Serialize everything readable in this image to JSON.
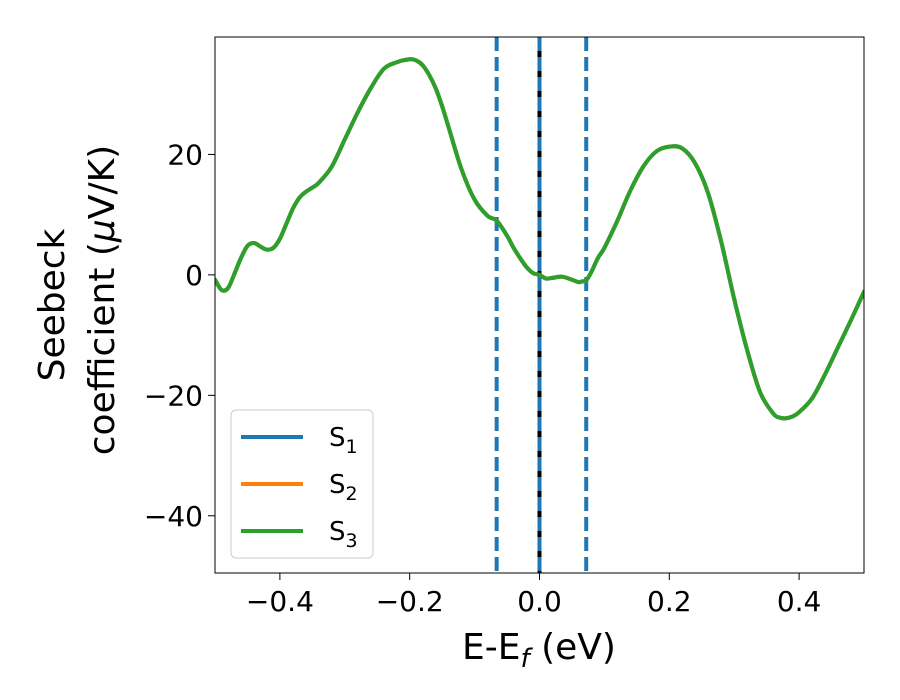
{
  "chart_data": {
    "type": "line",
    "xlabel": "E-E",
    "xlabel_sub": "f",
    "xlabel_unit": " (eV)",
    "ylabel_line1": "Seebeck",
    "ylabel_line2_prefix": "coefficient  (",
    "ylabel_mu": "μ",
    "ylabel_line2_suffix": "V/K)",
    "xlim": [
      -0.5,
      0.5
    ],
    "ylim": [
      -49.5,
      39.5
    ],
    "x_ticks": [
      -0.4,
      -0.2,
      0.0,
      0.2,
      0.4
    ],
    "x_tick_labels": [
      "−0.4",
      "−0.2",
      "0.0",
      "0.2",
      "0.4"
    ],
    "y_ticks": [
      20,
      0,
      -20,
      -40
    ],
    "y_tick_labels": [
      "20",
      "0",
      "−20",
      "−40"
    ],
    "legend_placement": "lower-left",
    "grid": false,
    "vlines": [
      {
        "x": 0.0,
        "color": "#000000",
        "style": "solid"
      },
      {
        "x": -0.066,
        "color": "#1f77b4",
        "style": "dashed"
      },
      {
        "x": 0.0,
        "color": "#1f77b4",
        "style": "dashed"
      },
      {
        "x": 0.072,
        "color": "#1f77b4",
        "style": "dashed"
      }
    ],
    "x": [
      -0.5,
      -0.49,
      -0.48,
      -0.47,
      -0.46,
      -0.45,
      -0.44,
      -0.43,
      -0.42,
      -0.41,
      -0.4,
      -0.39,
      -0.38,
      -0.37,
      -0.36,
      -0.35,
      -0.34,
      -0.32,
      -0.3,
      -0.28,
      -0.26,
      -0.24,
      -0.22,
      -0.2,
      -0.19,
      -0.18,
      -0.17,
      -0.16,
      -0.15,
      -0.14,
      -0.12,
      -0.1,
      -0.08,
      -0.066,
      -0.05,
      -0.04,
      -0.03,
      -0.02,
      -0.01,
      0.0,
      0.01,
      0.02,
      0.035,
      0.05,
      0.06,
      0.065,
      0.072,
      0.08,
      0.09,
      0.1,
      0.12,
      0.14,
      0.16,
      0.18,
      0.2,
      0.22,
      0.24,
      0.26,
      0.28,
      0.3,
      0.32,
      0.34,
      0.36,
      0.37,
      0.38,
      0.39,
      0.4,
      0.42,
      0.44,
      0.46,
      0.48,
      0.5
    ],
    "series": [
      {
        "name": "S",
        "name_sub": "1",
        "color": "#1f77b4",
        "values": [
          -0.8,
          -2.5,
          -2.2,
          0.2,
          2.8,
          4.8,
          5.3,
          4.7,
          4.2,
          4.5,
          6.0,
          8.5,
          11.0,
          12.8,
          13.8,
          14.5,
          15.3,
          18.0,
          22.5,
          27.0,
          31.0,
          34.2,
          35.3,
          35.8,
          35.6,
          34.8,
          33.2,
          31.0,
          28.0,
          24.5,
          17.5,
          12.5,
          9.8,
          9.0,
          6.5,
          4.5,
          2.8,
          1.3,
          0.3,
          0.0,
          -0.6,
          -0.5,
          -0.3,
          -0.8,
          -1.2,
          -1.1,
          -0.9,
          0.5,
          2.8,
          4.5,
          9.0,
          14.0,
          18.0,
          20.5,
          21.3,
          21.0,
          18.5,
          13.5,
          5.5,
          -4.0,
          -12.5,
          -19.5,
          -23.0,
          -23.7,
          -23.8,
          -23.5,
          -22.8,
          -20.5,
          -16.5,
          -12.0,
          -7.5,
          -2.8
        ]
      },
      {
        "name": "S",
        "name_sub": "2",
        "color": "#ff7f0e",
        "values": [
          -0.8,
          -2.5,
          -2.2,
          0.2,
          2.8,
          4.8,
          5.3,
          4.7,
          4.2,
          4.5,
          6.0,
          8.5,
          11.0,
          12.8,
          13.8,
          14.5,
          15.3,
          18.0,
          22.5,
          27.0,
          31.0,
          34.2,
          35.3,
          35.8,
          35.6,
          34.8,
          33.2,
          31.0,
          28.0,
          24.5,
          17.5,
          12.5,
          9.8,
          9.0,
          6.5,
          4.5,
          2.8,
          1.3,
          0.3,
          0.0,
          -0.6,
          -0.5,
          -0.3,
          -0.8,
          -1.2,
          -1.1,
          -0.9,
          0.5,
          2.8,
          4.5,
          9.0,
          14.0,
          18.0,
          20.5,
          21.3,
          21.0,
          18.5,
          13.5,
          5.5,
          -4.0,
          -12.5,
          -19.5,
          -23.0,
          -23.7,
          -23.8,
          -23.5,
          -22.8,
          -20.5,
          -16.5,
          -12.0,
          -7.5,
          -2.8
        ]
      },
      {
        "name": "S",
        "name_sub": "3",
        "color": "#2ca02c",
        "values": [
          -0.8,
          -2.5,
          -2.2,
          0.2,
          2.8,
          4.8,
          5.3,
          4.7,
          4.2,
          4.5,
          6.0,
          8.5,
          11.0,
          12.8,
          13.8,
          14.5,
          15.3,
          18.0,
          22.5,
          27.0,
          31.0,
          34.2,
          35.3,
          35.8,
          35.6,
          34.8,
          33.2,
          31.0,
          28.0,
          24.5,
          17.5,
          12.5,
          9.8,
          9.0,
          6.5,
          4.5,
          2.8,
          1.3,
          0.3,
          0.0,
          -0.6,
          -0.5,
          -0.3,
          -0.8,
          -1.2,
          -1.1,
          -0.9,
          0.5,
          2.8,
          4.5,
          9.0,
          14.0,
          18.0,
          20.5,
          21.3,
          21.0,
          18.5,
          13.5,
          5.5,
          -4.0,
          -12.5,
          -19.5,
          -23.0,
          -23.7,
          -23.8,
          -23.5,
          -22.8,
          -20.5,
          -16.5,
          -12.0,
          -7.5,
          -2.8
        ]
      }
    ]
  }
}
